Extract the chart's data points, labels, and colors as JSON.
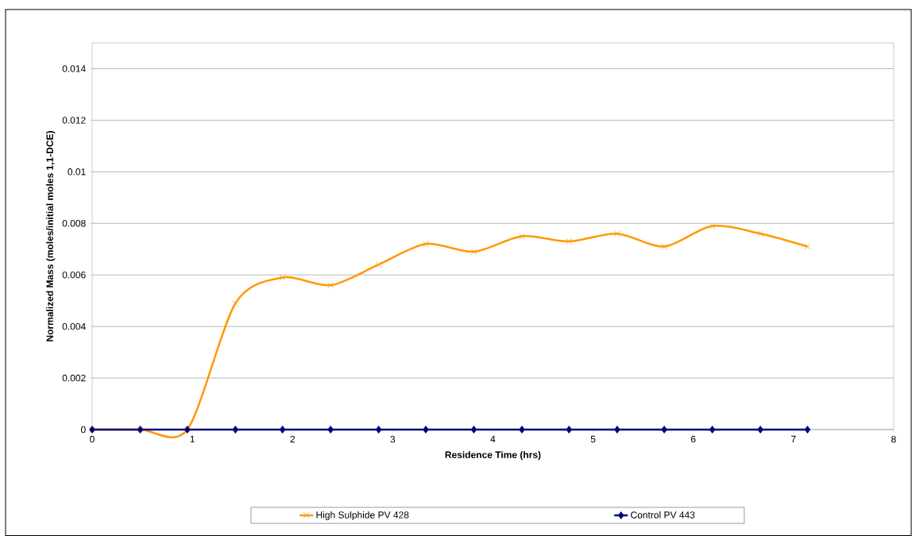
{
  "chart_data": {
    "type": "line",
    "xlabel": "Residence Time (hrs)",
    "ylabel": "Normalized Mass (moles/initial moles 1,1-DCE)",
    "x": [
      0,
      0.48,
      0.95,
      1.43,
      1.9,
      2.38,
      2.86,
      3.33,
      3.81,
      4.29,
      4.76,
      5.24,
      5.71,
      6.19,
      6.67,
      7.14
    ],
    "series": [
      {
        "name": "High Sulphide PV 428",
        "color": "#ff9900",
        "marker": "cross",
        "values": [
          0,
          0,
          0,
          0.0049,
          0.0059,
          0.0056,
          0.0064,
          0.0072,
          0.0069,
          0.0075,
          0.0073,
          0.0076,
          0.0071,
          0.0079,
          0.0076,
          0.0071
        ]
      },
      {
        "name": "Control PV 443",
        "color": "#000080",
        "marker": "diamond",
        "values": [
          0,
          0,
          0,
          0,
          0,
          0,
          0,
          0,
          0,
          0,
          0,
          0,
          0,
          0,
          0,
          0
        ]
      }
    ],
    "xlim": [
      0,
      8
    ],
    "xticks": [
      0,
      1,
      2,
      3,
      4,
      5,
      6,
      7,
      8
    ],
    "ylim": [
      0,
      0.015
    ],
    "yticks": [
      0,
      0.002,
      0.004,
      0.006,
      0.008,
      0.01,
      0.012,
      0.014
    ],
    "grid": "y",
    "legend": "bottom",
    "line_style": "solid"
  }
}
